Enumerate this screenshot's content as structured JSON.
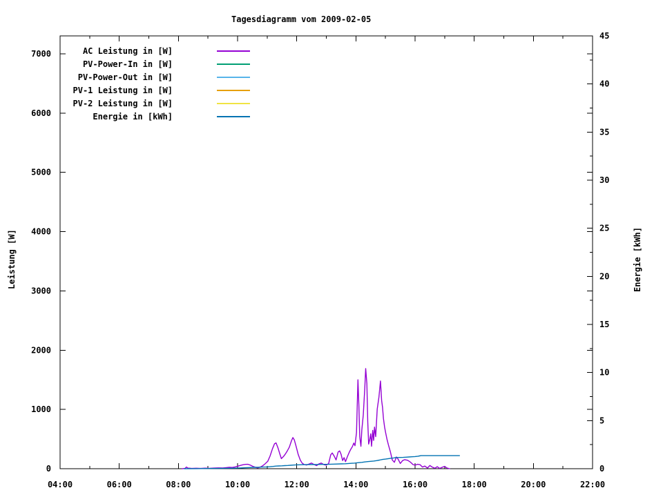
{
  "chart_data": {
    "type": "line",
    "title": "Tagesdiagramm vom 2009-02-05",
    "x_axis": {
      "range_hours": [
        4,
        22
      ],
      "major_tick_labels": [
        "04:00",
        "06:00",
        "08:00",
        "10:00",
        "12:00",
        "14:00",
        "16:00",
        "18:00",
        "20:00",
        "22:00"
      ],
      "major_tick_interval_hours": 2,
      "minor_tick_interval_hours": 1
    },
    "y1_axis": {
      "label": "Leistung [W]",
      "tick_labels": [
        "0",
        "1000",
        "2000",
        "3000",
        "4000",
        "5000",
        "6000",
        "7000"
      ],
      "range": [
        0,
        7302
      ],
      "grid": false
    },
    "y2_axis": {
      "label": "Energie [kWh]",
      "tick_labels": [
        "0",
        "5",
        "10",
        "15",
        "20",
        "25",
        "30",
        "35",
        "40",
        "45"
      ],
      "range": [
        0,
        45
      ],
      "minor_tick_interval": 2.5
    },
    "legend_position": "top-left-inside",
    "series": [
      {
        "name": "AC Leistung in [W]",
        "color": "#9400d3",
        "axis": "y1",
        "points": [
          [
            8.13,
            0
          ],
          [
            8.22,
            5
          ],
          [
            8.27,
            28
          ],
          [
            8.32,
            10
          ],
          [
            8.45,
            5
          ],
          [
            8.6,
            8
          ],
          [
            8.75,
            5
          ],
          [
            8.9,
            9
          ],
          [
            9.05,
            7
          ],
          [
            9.2,
            11
          ],
          [
            9.35,
            14
          ],
          [
            9.5,
            13
          ],
          [
            9.62,
            19
          ],
          [
            9.72,
            23
          ],
          [
            9.82,
            21
          ],
          [
            9.92,
            30
          ],
          [
            10.02,
            44
          ],
          [
            10.1,
            56
          ],
          [
            10.18,
            66
          ],
          [
            10.27,
            73
          ],
          [
            10.35,
            74
          ],
          [
            10.43,
            60
          ],
          [
            10.52,
            38
          ],
          [
            10.6,
            24
          ],
          [
            10.68,
            14
          ],
          [
            10.77,
            28
          ],
          [
            10.85,
            50
          ],
          [
            10.93,
            82
          ],
          [
            11.02,
            125
          ],
          [
            11.1,
            215
          ],
          [
            11.18,
            335
          ],
          [
            11.25,
            420
          ],
          [
            11.3,
            435
          ],
          [
            11.37,
            345
          ],
          [
            11.43,
            245
          ],
          [
            11.48,
            170
          ],
          [
            11.55,
            205
          ],
          [
            11.62,
            252
          ],
          [
            11.68,
            300
          ],
          [
            11.75,
            365
          ],
          [
            11.82,
            470
          ],
          [
            11.87,
            525
          ],
          [
            11.92,
            485
          ],
          [
            11.98,
            375
          ],
          [
            12.05,
            240
          ],
          [
            12.12,
            145
          ],
          [
            12.18,
            95
          ],
          [
            12.25,
            70
          ],
          [
            12.33,
            62
          ],
          [
            12.42,
            80
          ],
          [
            12.5,
            96
          ],
          [
            12.58,
            72
          ],
          [
            12.67,
            52
          ],
          [
            12.75,
            82
          ],
          [
            12.83,
            96
          ],
          [
            12.92,
            68
          ],
          [
            13.0,
            60
          ],
          [
            13.08,
            88
          ],
          [
            13.15,
            235
          ],
          [
            13.2,
            265
          ],
          [
            13.27,
            208
          ],
          [
            13.33,
            148
          ],
          [
            13.4,
            282
          ],
          [
            13.45,
            300
          ],
          [
            13.5,
            242
          ],
          [
            13.55,
            138
          ],
          [
            13.6,
            186
          ],
          [
            13.65,
            120
          ],
          [
            13.72,
            212
          ],
          [
            13.78,
            282
          ],
          [
            13.83,
            332
          ],
          [
            13.88,
            372
          ],
          [
            13.93,
            432
          ],
          [
            13.97,
            388
          ],
          [
            14.02,
            610
          ],
          [
            14.07,
            1500
          ],
          [
            14.1,
            1080
          ],
          [
            14.13,
            540
          ],
          [
            14.17,
            378
          ],
          [
            14.2,
            655
          ],
          [
            14.25,
            905
          ],
          [
            14.3,
            1360
          ],
          [
            14.33,
            1690
          ],
          [
            14.37,
            1440
          ],
          [
            14.4,
            790
          ],
          [
            14.43,
            415
          ],
          [
            14.47,
            500
          ],
          [
            14.5,
            588
          ],
          [
            14.53,
            378
          ],
          [
            14.57,
            648
          ],
          [
            14.6,
            478
          ],
          [
            14.63,
            702
          ],
          [
            14.67,
            540
          ],
          [
            14.72,
            1005
          ],
          [
            14.78,
            1210
          ],
          [
            14.83,
            1480
          ],
          [
            14.87,
            1150
          ],
          [
            14.9,
            1035
          ],
          [
            14.93,
            848
          ],
          [
            14.97,
            700
          ],
          [
            15.0,
            618
          ],
          [
            15.05,
            498
          ],
          [
            15.1,
            398
          ],
          [
            15.17,
            278
          ],
          [
            15.23,
            148
          ],
          [
            15.3,
            108
          ],
          [
            15.37,
            198
          ],
          [
            15.43,
            158
          ],
          [
            15.5,
            88
          ],
          [
            15.58,
            138
          ],
          [
            15.65,
            152
          ],
          [
            15.75,
            142
          ],
          [
            15.85,
            108
          ],
          [
            15.93,
            70
          ],
          [
            16.0,
            58
          ],
          [
            16.08,
            74
          ],
          [
            16.17,
            68
          ],
          [
            16.25,
            28
          ],
          [
            16.33,
            44
          ],
          [
            16.42,
            12
          ],
          [
            16.5,
            54
          ],
          [
            16.58,
            28
          ],
          [
            16.67,
            8
          ],
          [
            16.75,
            34
          ],
          [
            16.83,
            5
          ],
          [
            16.92,
            24
          ],
          [
            17.0,
            38
          ],
          [
            17.08,
            10
          ],
          [
            17.17,
            0
          ]
        ]
      },
      {
        "name": "PV-Power-In in [W]",
        "color": "#009e73",
        "axis": "y1",
        "points": []
      },
      {
        "name": "PV-Power-Out in [W]",
        "color": "#56b4e9",
        "axis": "y1",
        "points": []
      },
      {
        "name": "PV-1 Leistung in [W]",
        "color": "#e69f00",
        "axis": "y1",
        "points": []
      },
      {
        "name": "PV-2 Leistung in [W]",
        "color": "#f0e442",
        "axis": "y1",
        "points": []
      },
      {
        "name": "Energie in [kWh]",
        "color": "#0072b2",
        "axis": "y2",
        "points": [
          [
            8.2,
            0
          ],
          [
            8.6,
            0.01
          ],
          [
            9.0,
            0.02
          ],
          [
            9.4,
            0.03
          ],
          [
            9.8,
            0.05
          ],
          [
            10.1,
            0.08
          ],
          [
            10.25,
            0.1
          ],
          [
            10.4,
            0.12
          ],
          [
            10.55,
            0.14
          ],
          [
            10.7,
            0.15
          ],
          [
            10.85,
            0.17
          ],
          [
            11.0,
            0.19
          ],
          [
            11.1,
            0.21
          ],
          [
            11.2,
            0.24
          ],
          [
            11.3,
            0.27
          ],
          [
            11.4,
            0.29
          ],
          [
            11.5,
            0.3
          ],
          [
            11.6,
            0.32
          ],
          [
            11.7,
            0.34
          ],
          [
            11.8,
            0.36
          ],
          [
            11.9,
            0.38
          ],
          [
            12.0,
            0.4
          ],
          [
            12.15,
            0.41
          ],
          [
            12.3,
            0.42
          ],
          [
            12.5,
            0.43
          ],
          [
            12.7,
            0.44
          ],
          [
            12.9,
            0.45
          ],
          [
            13.1,
            0.46
          ],
          [
            13.3,
            0.48
          ],
          [
            13.5,
            0.5
          ],
          [
            13.65,
            0.52
          ],
          [
            13.8,
            0.55
          ],
          [
            13.95,
            0.58
          ],
          [
            14.1,
            0.63
          ],
          [
            14.2,
            0.66
          ],
          [
            14.3,
            0.7
          ],
          [
            14.4,
            0.74
          ],
          [
            14.5,
            0.77
          ],
          [
            14.6,
            0.8
          ],
          [
            14.7,
            0.84
          ],
          [
            14.8,
            0.9
          ],
          [
            14.9,
            0.96
          ],
          [
            15.0,
            1.0
          ],
          [
            15.1,
            1.05
          ],
          [
            15.2,
            1.09
          ],
          [
            15.28,
            1.12
          ],
          [
            15.32,
            1.15
          ],
          [
            15.4,
            1.16
          ],
          [
            15.5,
            1.17
          ],
          [
            15.6,
            1.18
          ],
          [
            15.7,
            1.2
          ],
          [
            15.8,
            1.22
          ],
          [
            15.9,
            1.24
          ],
          [
            16.0,
            1.26
          ],
          [
            16.1,
            1.3
          ],
          [
            16.15,
            1.33
          ],
          [
            16.2,
            1.36
          ],
          [
            17.5,
            1.36
          ]
        ]
      }
    ]
  }
}
